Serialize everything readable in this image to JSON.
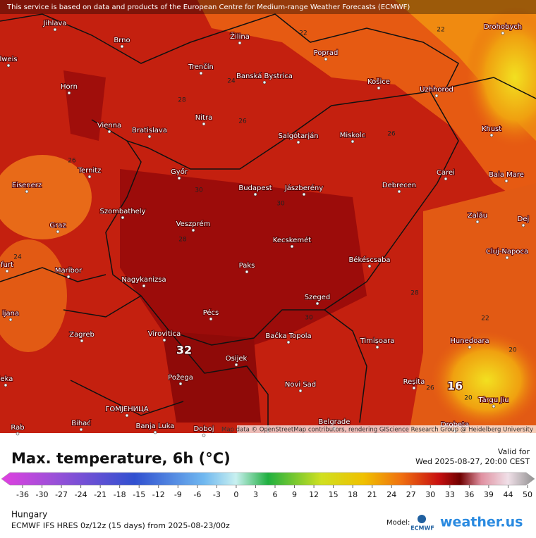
{
  "header": {
    "attribution": "This service is based on data and products of the European Centre for Medium-range Weather Forecasts (ECMWF)"
  },
  "map": {
    "cities": [
      "Jihlava",
      "Brno",
      "Žilina",
      "Poprad",
      "Drohobych",
      "lweis",
      "Trenčín",
      "Banská Bystrica",
      "Horn",
      "Košice",
      "Uzhhorod",
      "Vienna",
      "Bratislava",
      "Nitra",
      "Salgótarján",
      "Miskolc",
      "Khust",
      "Ternitz",
      "Győr",
      "Carei",
      "Baia Mare",
      "Eisenerz",
      "Budapest",
      "Jászberény",
      "Debrecen",
      "Szombathely",
      "Zalău",
      "Graz",
      "Veszprém",
      "Dej",
      "Kecskemét",
      "Cluj-Napoca",
      "furt",
      "Paks",
      "Békéscsaba",
      "Maribor",
      "Nagykanizsa",
      "Szeged",
      "Pécs",
      "ljana",
      "Virovitica",
      "Bačka Topola",
      "Zagreb",
      "Timișoara",
      "Hunedoara",
      "Osijek",
      "Požega",
      "Reșita",
      "ieka",
      "Novi Sad",
      "Târgu Jiu",
      "ГОМЈЕНИЦА",
      "Bihać",
      "Banja Luka",
      "Belgrade",
      "Doboj",
      "Drobeta",
      "Rab"
    ],
    "contour_labels": [
      22,
      22,
      24,
      28,
      26,
      26,
      26,
      30,
      30,
      28,
      24,
      28,
      30,
      22,
      20,
      26,
      20
    ],
    "extremes": [
      32,
      16
    ],
    "credit": "Map data © OpenStreetMap contributors, rendering GIScience Research Group @ Heidelberg University"
  },
  "legend": {
    "title": "Max. temperature, 6h (°C)",
    "valid_label": "Valid for",
    "valid_time": "Wed 2025-08-27, 20:00 CEST",
    "scale_ticks": [
      -36,
      -30,
      -27,
      -24,
      -21,
      -18,
      -15,
      -12,
      -9,
      -6,
      -3,
      0,
      3,
      6,
      9,
      12,
      15,
      18,
      21,
      24,
      27,
      30,
      33,
      36,
      39,
      44,
      50
    ],
    "region": "Hungary",
    "run": "ECMWF IFS HRES 0z/12z (15 days) from  2025-08-23/00z",
    "model_label": "Model:",
    "model": "ECMWF",
    "brand": "weather.us"
  }
}
